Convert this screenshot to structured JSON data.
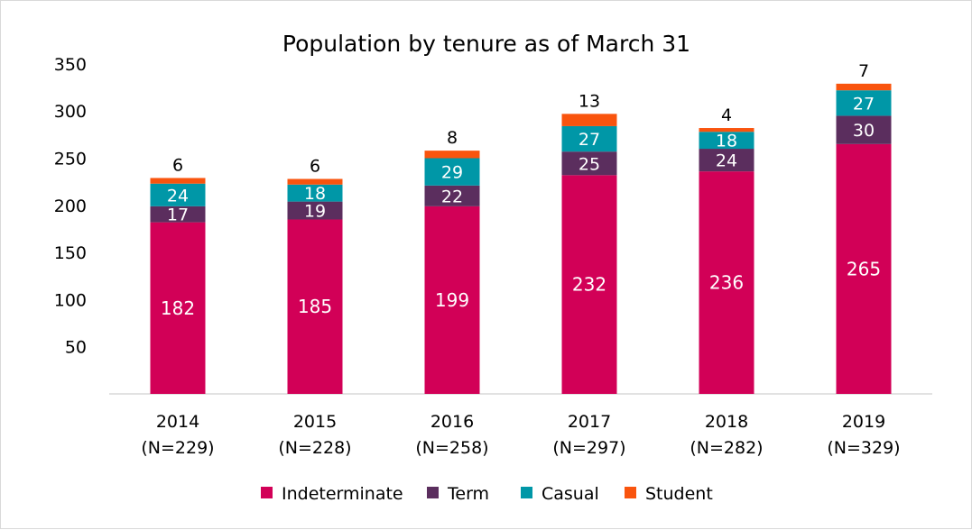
{
  "chart_data": {
    "type": "bar",
    "stacked": true,
    "title": "Population by tenure as of March 31",
    "categories": [
      "2014",
      "2015",
      "2016",
      "2017",
      "2018",
      "2019"
    ],
    "category_sublabels": [
      "(N=229)",
      "(N=228)",
      "(N=258)",
      "(N=297)",
      "(N=282)",
      "(N=329)"
    ],
    "series": [
      {
        "name": "Indeterminate",
        "values": [
          182,
          185,
          199,
          232,
          236,
          265
        ],
        "color": "#d20057"
      },
      {
        "name": "Term",
        "values": [
          17,
          19,
          22,
          25,
          24,
          30
        ],
        "color": "#5b2e5e"
      },
      {
        "name": "Casual",
        "values": [
          24,
          18,
          29,
          27,
          18,
          27
        ],
        "color": "#0097a7"
      },
      {
        "name": "Student",
        "values": [
          6,
          6,
          8,
          13,
          4,
          7
        ],
        "color": "#f9540e"
      }
    ],
    "yticks": [
      50,
      100,
      150,
      200,
      250,
      300,
      350
    ],
    "ylim": [
      0,
      350
    ],
    "xlabel": "",
    "ylabel": "",
    "grid": false,
    "legend_position": "bottom"
  }
}
